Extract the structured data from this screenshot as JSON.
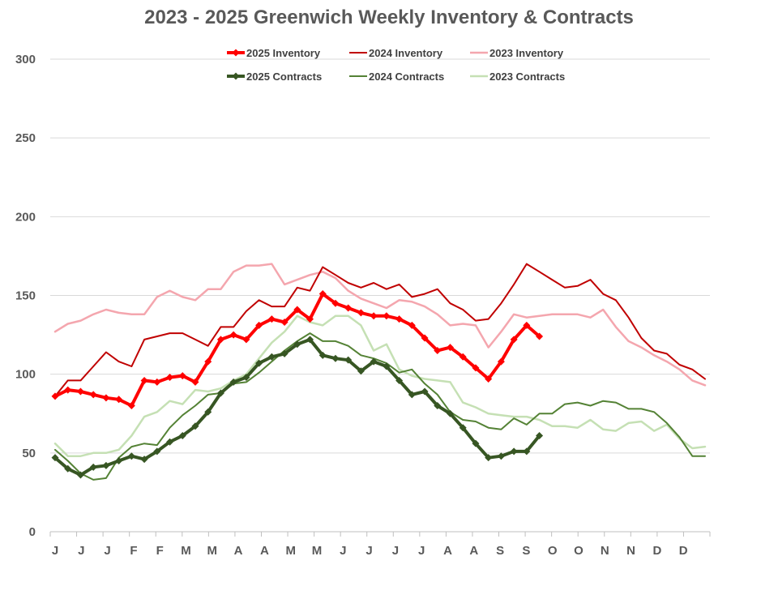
{
  "chart_data": {
    "type": "line",
    "title": "2023 - 2025 Greenwich Weekly Inventory & Contracts",
    "ylim": [
      0,
      300
    ],
    "yticks": [
      0,
      50,
      100,
      150,
      200,
      250,
      300
    ],
    "month_ticks": [
      "J",
      "J",
      "J",
      "F",
      "F",
      "M",
      "M",
      "A",
      "A",
      "M",
      "M",
      "J",
      "J",
      "J",
      "J",
      "A",
      "A",
      "S",
      "S",
      "O",
      "O",
      "N",
      "N",
      "D",
      "D"
    ],
    "grid": "horizontal",
    "legend_position": "top",
    "series": [
      {
        "name": "2025 Inventory",
        "color": "#ff0000",
        "width": 4,
        "marker": "diamond",
        "values": [
          86,
          90,
          89,
          87,
          85,
          84,
          80,
          96,
          95,
          98,
          99,
          95,
          108,
          122,
          125,
          122,
          131,
          135,
          133,
          141,
          135,
          151,
          145,
          142,
          139,
          137,
          137,
          135,
          131,
          123,
          115,
          117,
          111,
          104,
          97,
          108,
          122,
          131,
          124
        ]
      },
      {
        "name": "2024 Inventory",
        "color": "#c00000",
        "width": 2,
        "marker": "none",
        "values": [
          86,
          96,
          96,
          105,
          114,
          108,
          105,
          122,
          124,
          126,
          126,
          122,
          118,
          130,
          130,
          140,
          147,
          143,
          143,
          155,
          153,
          168,
          163,
          158,
          155,
          158,
          154,
          157,
          149,
          151,
          154,
          145,
          141,
          134,
          135,
          145,
          157,
          170,
          165,
          160,
          155,
          156,
          160,
          151,
          147,
          136,
          123,
          115,
          113,
          106,
          103,
          97
        ]
      },
      {
        "name": "2023 Inventory",
        "color": "#f4a6ae",
        "width": 2.5,
        "marker": "none",
        "values": [
          127,
          132,
          134,
          138,
          141,
          139,
          138,
          138,
          149,
          153,
          149,
          147,
          154,
          154,
          165,
          169,
          169,
          170,
          157,
          160,
          163,
          165,
          161,
          153,
          148,
          145,
          142,
          147,
          146,
          143,
          138,
          131,
          132,
          131,
          117,
          127,
          138,
          136,
          137,
          138,
          138,
          138,
          136,
          141,
          130,
          121,
          117,
          112,
          108,
          103,
          96,
          93
        ]
      },
      {
        "name": "2025 Contracts",
        "color": "#375623",
        "width": 4,
        "marker": "diamond",
        "values": [
          47,
          40,
          36,
          41,
          42,
          45,
          48,
          46,
          51,
          57,
          61,
          67,
          76,
          88,
          95,
          98,
          107,
          111,
          113,
          119,
          122,
          112,
          110,
          109,
          102,
          108,
          105,
          96,
          87,
          89,
          80,
          75,
          66,
          56,
          47,
          48,
          51,
          51,
          61
        ]
      },
      {
        "name": "2024 Contracts",
        "color": "#548235",
        "width": 2,
        "marker": "none",
        "values": [
          52,
          45,
          37,
          33,
          34,
          47,
          54,
          56,
          55,
          66,
          74,
          80,
          87,
          88,
          94,
          95,
          101,
          108,
          115,
          121,
          126,
          121,
          121,
          118,
          112,
          110,
          107,
          101,
          103,
          94,
          87,
          76,
          71,
          70,
          66,
          65,
          72,
          68,
          75,
          75,
          81,
          82,
          80,
          83,
          82,
          78,
          78,
          76,
          69,
          60,
          48,
          48
        ]
      },
      {
        "name": "2023 Contracts",
        "color": "#c5e0b4",
        "width": 2.5,
        "marker": "none",
        "values": [
          56,
          48,
          48,
          50,
          50,
          52,
          61,
          73,
          76,
          83,
          81,
          90,
          89,
          91,
          96,
          100,
          110,
          120,
          127,
          137,
          133,
          131,
          137,
          137,
          131,
          115,
          119,
          103,
          99,
          97,
          96,
          95,
          82,
          79,
          75,
          74,
          73,
          73,
          71,
          67,
          67,
          66,
          71,
          65,
          64,
          69,
          70,
          64,
          68,
          59,
          53,
          54
        ]
      }
    ]
  }
}
